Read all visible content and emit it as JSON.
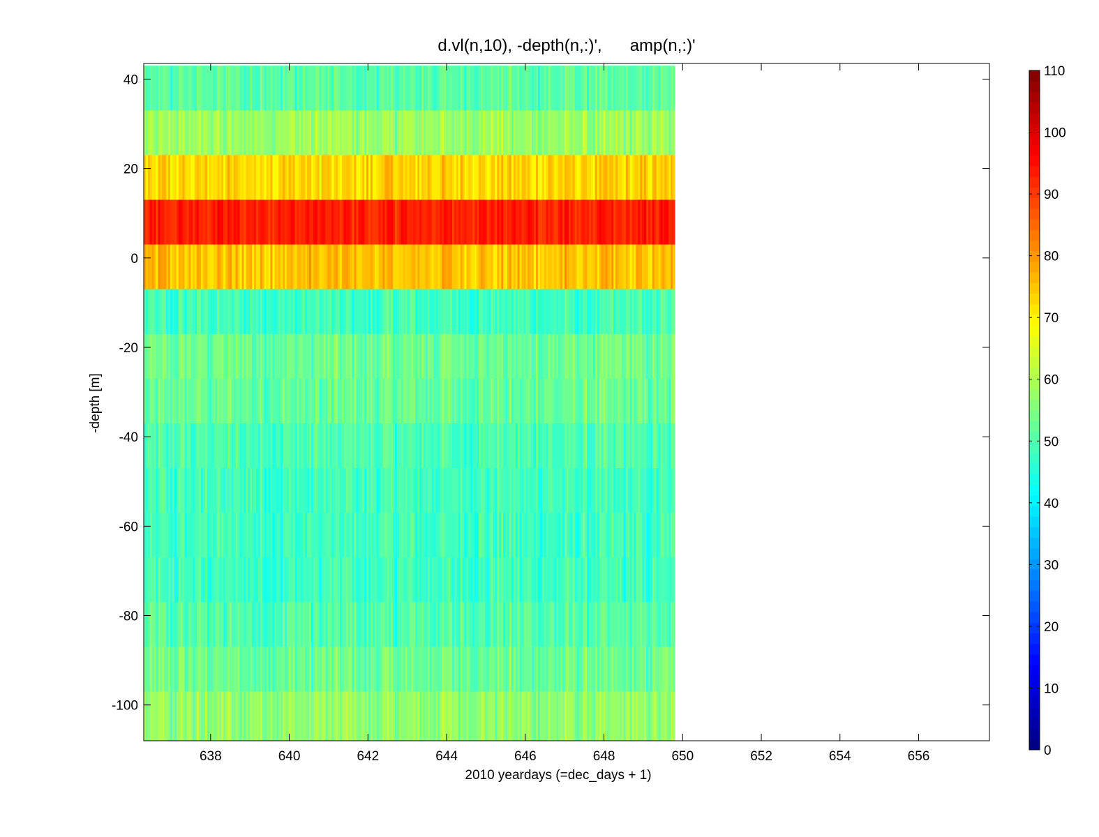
{
  "chart_data": {
    "type": "heatmap",
    "title": "d.vl(n,10), -depth(n,:)',      amp(n,:)'",
    "xlabel": "2010 yeardays (=dec_days + 1)",
    "ylabel": "-depth [m]",
    "xlim": [
      636.3,
      657.8
    ],
    "ylim": [
      -108,
      43.5
    ],
    "x_ticks": [
      638,
      640,
      642,
      644,
      646,
      648,
      650,
      652,
      654,
      656
    ],
    "y_ticks": [
      -100,
      -80,
      -60,
      -40,
      -20,
      0,
      20,
      40
    ],
    "data_x_range": [
      636.3,
      649.8
    ],
    "colorbar": {
      "colormap": "jet",
      "range": [
        0,
        110
      ],
      "ticks": [
        0,
        10,
        20,
        30,
        40,
        50,
        60,
        70,
        80,
        90,
        100,
        110
      ]
    },
    "bins": [
      {
        "center": 38,
        "top": 43,
        "bottom": 33,
        "mean_amp": 51
      },
      {
        "center": 28,
        "top": 33,
        "bottom": 23,
        "mean_amp": 58
      },
      {
        "center": 18,
        "top": 23,
        "bottom": 13,
        "mean_amp": 73
      },
      {
        "center": 8,
        "top": 13,
        "bottom": 3,
        "mean_amp": 93
      },
      {
        "center": -2,
        "top": 3,
        "bottom": -7,
        "mean_amp": 75
      },
      {
        "center": -12,
        "top": -7,
        "bottom": -17,
        "mean_amp": 48
      },
      {
        "center": -22,
        "top": -17,
        "bottom": -27,
        "mean_amp": 53
      },
      {
        "center": -32,
        "top": -27,
        "bottom": -37,
        "mean_amp": 52
      },
      {
        "center": -42,
        "top": -37,
        "bottom": -47,
        "mean_amp": 49
      },
      {
        "center": -52,
        "top": -47,
        "bottom": -57,
        "mean_amp": 48
      },
      {
        "center": -62,
        "top": -57,
        "bottom": -67,
        "mean_amp": 48
      },
      {
        "center": -72,
        "top": -67,
        "bottom": -77,
        "mean_amp": 48
      },
      {
        "center": -82,
        "top": -77,
        "bottom": -87,
        "mean_amp": 50
      },
      {
        "center": -92,
        "top": -87,
        "bottom": -97,
        "mean_amp": 53
      },
      {
        "center": -102,
        "top": -97,
        "bottom": -108,
        "mean_amp": 57
      }
    ]
  }
}
